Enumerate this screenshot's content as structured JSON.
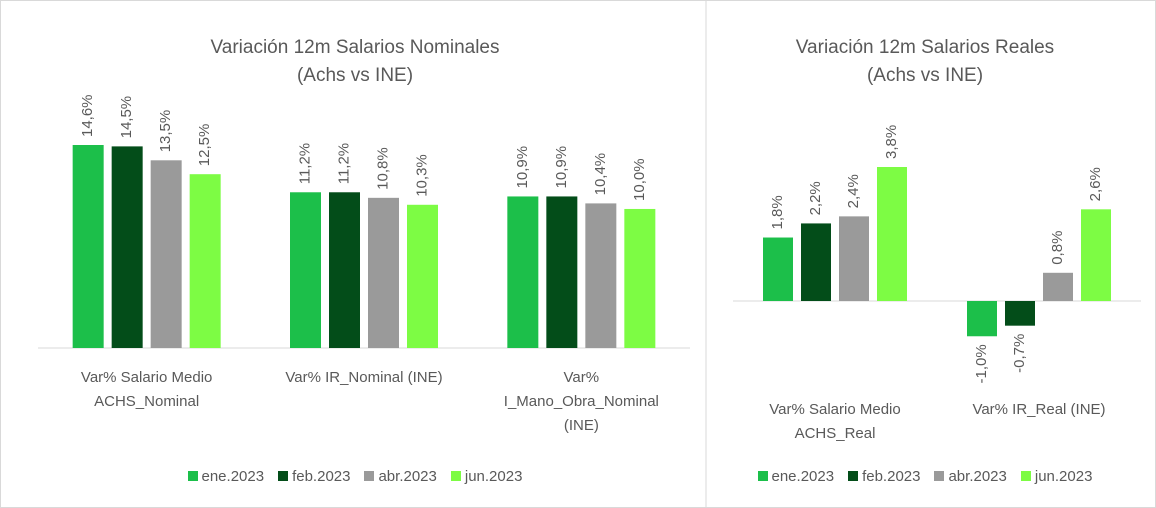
{
  "chart_data": [
    {
      "type": "bar",
      "title": [
        "Variación 12m Salarios Nominales",
        "(Achs vs INE)"
      ],
      "categories": [
        "Var% Salario Medio ACHS_Nominal",
        "Var% IR_Nominal (INE)",
        "Var% I_Mano_Obra_Nominal (INE)"
      ],
      "series": [
        {
          "name": "ene.2023",
          "color": "#1cbf4a",
          "values": [
            14.6,
            11.2,
            10.9
          ],
          "value_labels": [
            "14,6%",
            "11,2%",
            "10,9%"
          ]
        },
        {
          "name": "feb.2023",
          "color": "#034d19",
          "values": [
            14.5,
            11.2,
            10.9
          ],
          "value_labels": [
            "14,5%",
            "11,2%",
            "10,9%"
          ]
        },
        {
          "name": "abr.2023",
          "color": "#9a9a9a",
          "values": [
            13.5,
            10.8,
            10.4
          ],
          "value_labels": [
            "13,5%",
            "10,8%",
            "10,4%"
          ]
        },
        {
          "name": "jun.2023",
          "color": "#7dfc44",
          "values": [
            12.5,
            10.3,
            10.0
          ],
          "value_labels": [
            "12,5%",
            "10,3%",
            "10,0%"
          ]
        }
      ],
      "legend": "bottom"
    },
    {
      "type": "bar",
      "title": [
        "Variación 12m Salarios Reales",
        "(Achs vs INE)"
      ],
      "categories": [
        "Var% Salario Medio ACHS_Real",
        "Var% IR_Real (INE)"
      ],
      "series": [
        {
          "name": "ene.2023",
          "color": "#1cbf4a",
          "values": [
            1.8,
            -1.0
          ],
          "value_labels": [
            "1,8%",
            "-1,0%"
          ]
        },
        {
          "name": "feb.2023",
          "color": "#034d19",
          "values": [
            2.2,
            -0.7
          ],
          "value_labels": [
            "2,2%",
            "-0,7%"
          ]
        },
        {
          "name": "abr.2023",
          "color": "#9a9a9a",
          "values": [
            2.4,
            0.8
          ],
          "value_labels": [
            "2,4%",
            "0,8%"
          ]
        },
        {
          "name": "jun.2023",
          "color": "#7dfc44",
          "values": [
            3.8,
            2.6
          ],
          "value_labels": [
            "3,8%",
            "2,6%"
          ]
        }
      ],
      "legend": "bottom"
    }
  ]
}
